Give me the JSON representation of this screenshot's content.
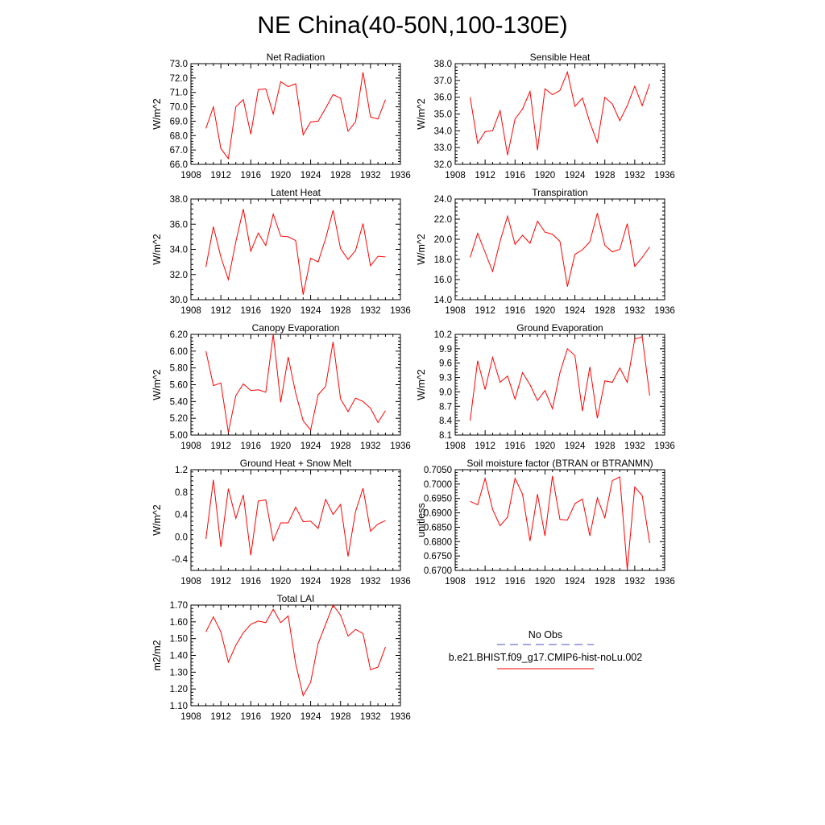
{
  "figure_title": "NE China(40-50N,100-130E)",
  "colors": {
    "series": "#ff0000",
    "obs": "#4d4dc0",
    "axis": "#000000"
  },
  "legend": {
    "obs_label": "No Obs",
    "series_label": "b.e21.BHIST.f09_g17.CMIP6-hist-noLu.002"
  },
  "chart_data": [
    {
      "type": "line",
      "title": "Net Radiation",
      "ylabel": "W/m^2",
      "xlim": [
        1908,
        1936
      ],
      "ylim": [
        66.0,
        73.0
      ],
      "x_ticks": [
        "1908",
        "1912",
        "1916",
        "1920",
        "1924",
        "1928",
        "1932",
        "1936"
      ],
      "y_ticks": [
        "66.0",
        "67.0",
        "68.0",
        "69.0",
        "70.0",
        "71.0",
        "72.0",
        "73.0"
      ],
      "x": [
        1910,
        1911,
        1912,
        1913,
        1914,
        1915,
        1916,
        1917,
        1918,
        1919,
        1920,
        1921,
        1922,
        1923,
        1924,
        1925,
        1926,
        1927,
        1928,
        1929,
        1930,
        1931,
        1932,
        1933,
        1934
      ],
      "values": [
        68.5,
        70.0,
        67.1,
        66.4,
        70.0,
        70.5,
        68.1,
        71.2,
        71.25,
        69.5,
        71.75,
        71.4,
        71.6,
        68.05,
        68.95,
        69.0,
        69.9,
        70.85,
        70.6,
        68.3,
        68.95,
        72.4,
        69.3,
        69.15,
        70.5
      ]
    },
    {
      "type": "line",
      "title": "Sensible Heat",
      "ylabel": "W/m^2",
      "xlim": [
        1908,
        1936
      ],
      "ylim": [
        32.0,
        38.0
      ],
      "x_ticks": [
        "1908",
        "1912",
        "1916",
        "1920",
        "1924",
        "1928",
        "1932",
        "1936"
      ],
      "y_ticks": [
        "32.0",
        "33.0",
        "34.0",
        "35.0",
        "36.0",
        "37.0",
        "38.0"
      ],
      "x": [
        1910,
        1911,
        1912,
        1913,
        1914,
        1915,
        1916,
        1917,
        1918,
        1919,
        1920,
        1921,
        1922,
        1923,
        1924,
        1925,
        1926,
        1927,
        1928,
        1929,
        1930,
        1931,
        1932,
        1933,
        1934
      ],
      "values": [
        36.0,
        33.25,
        33.95,
        34.0,
        35.2,
        32.55,
        34.7,
        35.3,
        36.35,
        32.85,
        36.5,
        36.15,
        36.4,
        37.5,
        35.45,
        35.95,
        34.5,
        33.3,
        36.0,
        35.6,
        34.6,
        35.5,
        36.65,
        35.5,
        36.8
      ]
    },
    {
      "type": "line",
      "title": "Latent Heat",
      "ylabel": "W/m^2",
      "xlim": [
        1908,
        1936
      ],
      "ylim": [
        30.0,
        38.0
      ],
      "x_ticks": [
        "1908",
        "1912",
        "1916",
        "1920",
        "1924",
        "1928",
        "1932",
        "1936"
      ],
      "y_ticks": [
        "30.0",
        "32.0",
        "34.0",
        "36.0",
        "38.0"
      ],
      "x": [
        1910,
        1911,
        1912,
        1913,
        1914,
        1915,
        1916,
        1917,
        1918,
        1919,
        1920,
        1921,
        1922,
        1923,
        1924,
        1925,
        1926,
        1927,
        1928,
        1929,
        1930,
        1931,
        1932,
        1933,
        1934
      ],
      "values": [
        32.6,
        35.8,
        33.4,
        31.6,
        34.6,
        37.2,
        33.85,
        35.3,
        34.3,
        36.8,
        35.05,
        35.0,
        34.7,
        30.4,
        33.3,
        33.0,
        34.85,
        37.1,
        34.05,
        33.2,
        33.9,
        36.05,
        32.7,
        33.45,
        33.4
      ]
    },
    {
      "type": "line",
      "title": "Transpiration",
      "ylabel": "W/m^2",
      "xlim": [
        1908,
        1936
      ],
      "ylim": [
        14.0,
        24.0
      ],
      "x_ticks": [
        "1908",
        "1912",
        "1916",
        "1920",
        "1924",
        "1928",
        "1932",
        "1936"
      ],
      "y_ticks": [
        "14.0",
        "16.0",
        "18.0",
        "20.0",
        "22.0",
        "24.0"
      ],
      "x": [
        1910,
        1911,
        1912,
        1913,
        1914,
        1915,
        1916,
        1917,
        1918,
        1919,
        1920,
        1921,
        1922,
        1923,
        1924,
        1925,
        1926,
        1927,
        1928,
        1929,
        1930,
        1931,
        1932,
        1933,
        1934
      ],
      "values": [
        18.2,
        20.6,
        18.7,
        16.8,
        19.8,
        22.3,
        19.5,
        20.4,
        19.6,
        21.8,
        20.7,
        20.5,
        19.8,
        15.3,
        18.5,
        18.95,
        19.75,
        22.6,
        19.4,
        18.75,
        19.0,
        21.55,
        17.3,
        18.2,
        19.25
      ]
    },
    {
      "type": "line",
      "title": "Canopy Evaporation",
      "ylabel": "W/m^2",
      "xlim": [
        1908,
        1936
      ],
      "ylim": [
        5.0,
        6.2
      ],
      "x_ticks": [
        "1908",
        "1912",
        "1916",
        "1920",
        "1924",
        "1928",
        "1932",
        "1936"
      ],
      "y_ticks": [
        "5.00",
        "5.20",
        "5.40",
        "5.60",
        "5.80",
        "6.00",
        "6.20"
      ],
      "x": [
        1910,
        1911,
        1912,
        1913,
        1914,
        1915,
        1916,
        1917,
        1918,
        1919,
        1920,
        1921,
        1922,
        1923,
        1924,
        1925,
        1926,
        1927,
        1928,
        1929,
        1930,
        1931,
        1932,
        1933,
        1934
      ],
      "values": [
        6.0,
        5.59,
        5.62,
        5.03,
        5.47,
        5.61,
        5.53,
        5.54,
        5.51,
        6.2,
        5.39,
        5.93,
        5.5,
        5.17,
        5.06,
        5.48,
        5.58,
        6.11,
        5.43,
        5.28,
        5.44,
        5.4,
        5.32,
        5.15,
        5.29
      ]
    },
    {
      "type": "line",
      "title": "Ground Evaporation",
      "ylabel": "W/m^2",
      "xlim": [
        1908,
        1936
      ],
      "ylim": [
        8.1,
        10.2
      ],
      "x_ticks": [
        "1908",
        "1912",
        "1916",
        "1920",
        "1924",
        "1928",
        "1932",
        "1936"
      ],
      "y_ticks": [
        "8.1",
        "8.4",
        "8.7",
        "9.0",
        "9.3",
        "9.6",
        "9.9",
        "10.2"
      ],
      "x": [
        1910,
        1911,
        1912,
        1913,
        1914,
        1915,
        1916,
        1917,
        1918,
        1919,
        1920,
        1921,
        1922,
        1923,
        1924,
        1925,
        1926,
        1927,
        1928,
        1929,
        1930,
        1931,
        1932,
        1933,
        1934
      ],
      "values": [
        8.4,
        9.65,
        9.05,
        9.72,
        9.2,
        9.33,
        8.85,
        9.4,
        9.15,
        8.82,
        9.03,
        8.65,
        9.4,
        9.9,
        9.76,
        8.6,
        9.52,
        8.45,
        9.23,
        9.2,
        9.5,
        9.2,
        10.1,
        10.15,
        8.92
      ]
    },
    {
      "type": "line",
      "title": "Ground Heat + Snow Melt",
      "ylabel": "W/m^2",
      "xlim": [
        1908,
        1936
      ],
      "ylim": [
        -0.6,
        1.2
      ],
      "x_ticks": [
        "1908",
        "1912",
        "1916",
        "1920",
        "1924",
        "1928",
        "1932",
        "1936"
      ],
      "y_ticks": [
        "-0.4",
        "0.0",
        "0.4",
        "0.8",
        "1.2"
      ],
      "x": [
        1910,
        1911,
        1912,
        1913,
        1914,
        1915,
        1916,
        1917,
        1918,
        1919,
        1920,
        1921,
        1922,
        1923,
        1924,
        1925,
        1926,
        1927,
        1928,
        1929,
        1930,
        1931,
        1932,
        1933,
        1934
      ],
      "values": [
        -0.04,
        1.02,
        -0.18,
        0.86,
        0.33,
        0.75,
        -0.33,
        0.64,
        0.66,
        -0.07,
        0.25,
        0.25,
        0.53,
        0.27,
        0.28,
        0.15,
        0.67,
        0.4,
        0.58,
        -0.35,
        0.45,
        0.87,
        0.1,
        0.23,
        0.29
      ]
    },
    {
      "type": "line",
      "title": "Soil moisture factor (BTRAN or BTRANMN)",
      "ylabel": "unitless",
      "xlim": [
        1908,
        1936
      ],
      "ylim": [
        0.67,
        0.705
      ],
      "x_ticks": [
        "1908",
        "1912",
        "1916",
        "1920",
        "1924",
        "1928",
        "1932",
        "1936"
      ],
      "y_ticks": [
        "0.6700",
        "0.6750",
        "0.6800",
        "0.6850",
        "0.6900",
        "0.6950",
        "0.7000",
        "0.7050"
      ],
      "x": [
        1910,
        1911,
        1912,
        1913,
        1914,
        1915,
        1916,
        1917,
        1918,
        1919,
        1920,
        1921,
        1922,
        1923,
        1924,
        1925,
        1926,
        1927,
        1928,
        1929,
        1930,
        1931,
        1932,
        1933,
        1934
      ],
      "values": [
        0.694,
        0.6928,
        0.702,
        0.6912,
        0.6855,
        0.6885,
        0.702,
        0.6965,
        0.6802,
        0.6965,
        0.682,
        0.7028,
        0.6877,
        0.6875,
        0.6932,
        0.6948,
        0.682,
        0.6952,
        0.6883,
        0.7012,
        0.7025,
        0.6703,
        0.699,
        0.696,
        0.6795
      ]
    },
    {
      "type": "line",
      "title": "Total LAI",
      "ylabel": "m2/m2",
      "xlim": [
        1908,
        1936
      ],
      "ylim": [
        1.1,
        1.7
      ],
      "x_ticks": [
        "1908",
        "1912",
        "1916",
        "1920",
        "1924",
        "1928",
        "1932",
        "1936"
      ],
      "y_ticks": [
        "1.10",
        "1.20",
        "1.30",
        "1.40",
        "1.50",
        "1.60",
        "1.70"
      ],
      "x": [
        1910,
        1911,
        1912,
        1913,
        1914,
        1915,
        1916,
        1917,
        1918,
        1919,
        1920,
        1921,
        1922,
        1923,
        1924,
        1925,
        1926,
        1927,
        1928,
        1929,
        1930,
        1931,
        1932,
        1933,
        1934
      ],
      "values": [
        1.54,
        1.63,
        1.54,
        1.36,
        1.46,
        1.535,
        1.585,
        1.605,
        1.595,
        1.675,
        1.595,
        1.635,
        1.35,
        1.16,
        1.24,
        1.47,
        1.585,
        1.7,
        1.64,
        1.515,
        1.555,
        1.53,
        1.315,
        1.33,
        1.45
      ]
    }
  ]
}
